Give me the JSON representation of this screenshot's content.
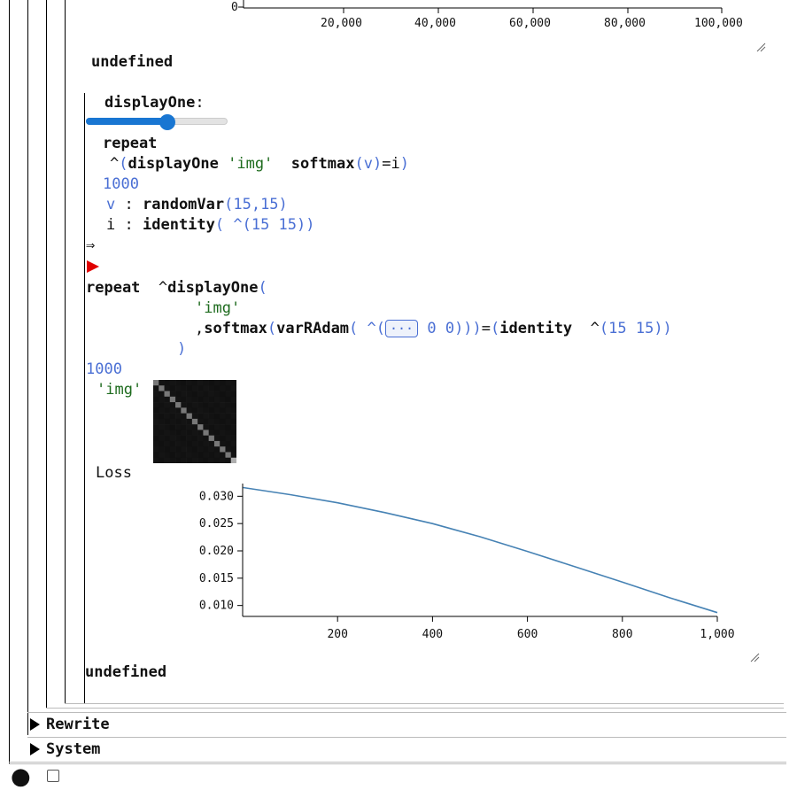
{
  "top_chart": {
    "y_tick": "0",
    "x_ticks": [
      "20,000",
      "40,000",
      "60,000",
      "80,000",
      "100,000"
    ]
  },
  "result1": "undefined",
  "slider": {
    "label": "displayOne",
    "colon": ":",
    "value_fraction": 0.58
  },
  "code": {
    "line1": "repeat",
    "line2_caret": "^",
    "line2_open": "(",
    "line2_fn": "displayOne",
    "line2_str": "'img'",
    "line2_softmax": "softmax",
    "line2_v_open": "(",
    "line2_v": "v",
    "line2_v_close": ")",
    "line2_eq": "=",
    "line2_i": "i",
    "line2_close": ")",
    "line3": "1000",
    "line4_v": "v",
    "line4_colon": ":",
    "line4_fn": "randomVar",
    "line4_args": "(15,15)",
    "line5_i": "i",
    "line5_colon": ":",
    "line5_fn": "identity",
    "line5_args": "( ^(15 15))"
  },
  "arrow": "⇒",
  "expanded": {
    "line1_kw": "repeat",
    "line1_caret": "^",
    "line1_fn": "displayOne",
    "line1_open": "(",
    "line2": "'img'",
    "line3_comma": ",",
    "line3_fn": "softmax",
    "line3_open": "(",
    "line3_fn2": "varRAdam",
    "line3_open2": "( ^(",
    "line3_ellipsis": "···",
    "line3_zeros": "0 0",
    "line3_close": ")))",
    "line3_eq": "=",
    "line3_open3": "(",
    "line3_identity": "identity",
    "line3_caret": "^",
    "line3_args": "(15 15))",
    "line4": ")",
    "line5": "1000"
  },
  "img_label": "'img'",
  "loss_label": "Loss",
  "chart_data": {
    "type": "line",
    "title": "",
    "xlabel": "",
    "ylabel": "",
    "xlim": [
      0,
      1000
    ],
    "ylim": [
      0.008,
      0.032
    ],
    "x_ticks": [
      "200",
      "400",
      "600",
      "800",
      "1,000"
    ],
    "y_ticks": [
      "0.030",
      "0.025",
      "0.020",
      "0.015",
      "0.010"
    ],
    "x": [
      1,
      100,
      200,
      300,
      400,
      500,
      600,
      700,
      800,
      900,
      1000
    ],
    "values": [
      0.0316,
      0.0303,
      0.0288,
      0.027,
      0.025,
      0.0226,
      0.0199,
      0.0171,
      0.0143,
      0.0114,
      0.0087
    ],
    "color": "#4682b4",
    "grid": false
  },
  "result2": "undefined",
  "sections": [
    {
      "label": "Rewrite"
    },
    {
      "label": "System"
    }
  ],
  "footer": {
    "dot": "●"
  }
}
